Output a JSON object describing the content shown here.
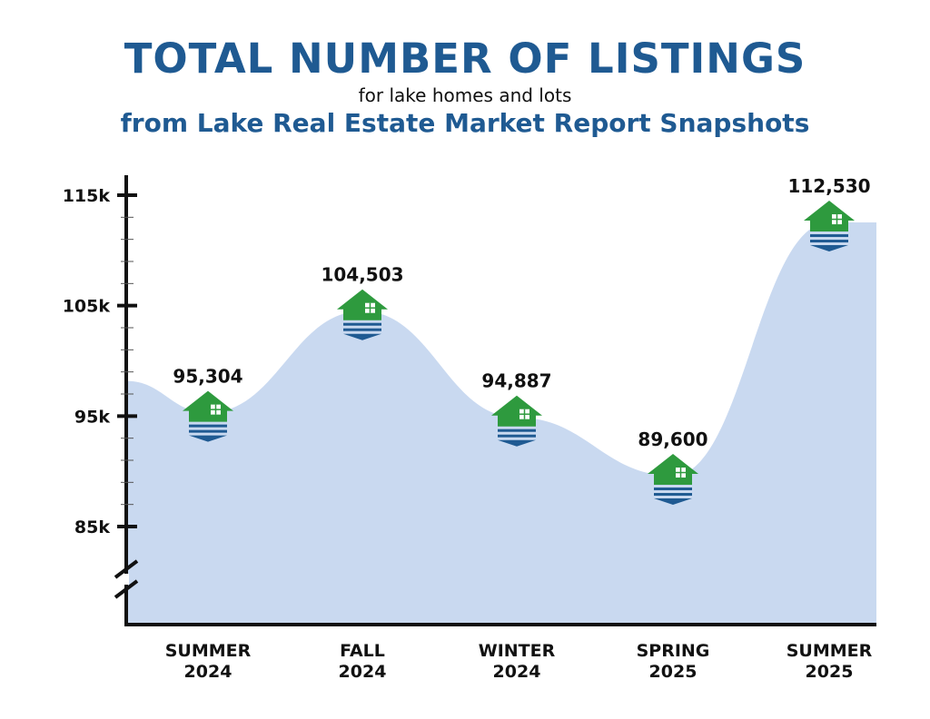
{
  "header": {
    "title": "TOTAL NUMBER OF LISTINGS",
    "subtitle": "for lake homes and lots",
    "subtitle2": "from Lake Real Estate Market Report Snapshots"
  },
  "colors": {
    "title": "#1f5a92",
    "area_fill": "#c9d9f0",
    "house_green": "#2e9a3e",
    "water_blue": "#1f5a92",
    "axis": "#111111"
  },
  "icons": {
    "marker": "house-on-water-icon"
  },
  "chart_data": {
    "type": "area",
    "categories": [
      "SUMMER\n2024",
      "FALL\n2024",
      "WINTER\n2024",
      "SPRING\n2025",
      "SUMMER\n2025"
    ],
    "values": [
      95304,
      104503,
      94887,
      89600,
      112530
    ],
    "data_labels": [
      "95,304",
      "104,503",
      "94,887",
      "89,600",
      "112,530"
    ],
    "y_ticks": [
      {
        "value": 85000,
        "label": "85k"
      },
      {
        "value": 95000,
        "label": "95k"
      },
      {
        "value": 105000,
        "label": "105k"
      },
      {
        "value": 115000,
        "label": "115k"
      }
    ],
    "ylim": [
      85000,
      115000
    ],
    "axis_break": true,
    "grid": false,
    "legend": "none"
  }
}
